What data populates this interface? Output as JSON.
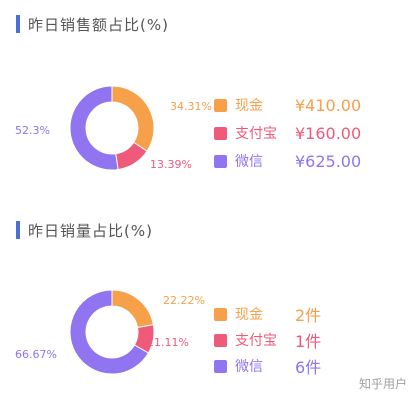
{
  "charts": [
    {
      "title": "昨日销售额占比(%)",
      "chart_data": {
        "type": "pie",
        "title": "昨日销售额占比(%)",
        "categories": [
          "现金",
          "支付宝",
          "微信"
        ],
        "values": [
          410.0,
          160.0,
          625.0
        ],
        "value_labels": [
          "¥410.00",
          "¥160.00",
          "¥625.00"
        ],
        "percent_labels": [
          "34.31%",
          "13.39%",
          "52.3%"
        ],
        "colors": [
          "#f7a04a",
          "#ef5a7a",
          "#9074f0"
        ],
        "legend": "right"
      }
    },
    {
      "title": "昨日销量占比(%)",
      "chart_data": {
        "type": "pie",
        "title": "昨日销量占比(%)",
        "categories": [
          "现金",
          "支付宝",
          "微信"
        ],
        "values": [
          2,
          1,
          6
        ],
        "value_labels": [
          "2件",
          "1件",
          "6件"
        ],
        "percent_labels": [
          "22.22%",
          "11.11%",
          "66.67%"
        ],
        "colors": [
          "#f7a04a",
          "#ef5a7a",
          "#9074f0"
        ],
        "legend": "right"
      }
    }
  ],
  "watermark": "知乎用户"
}
